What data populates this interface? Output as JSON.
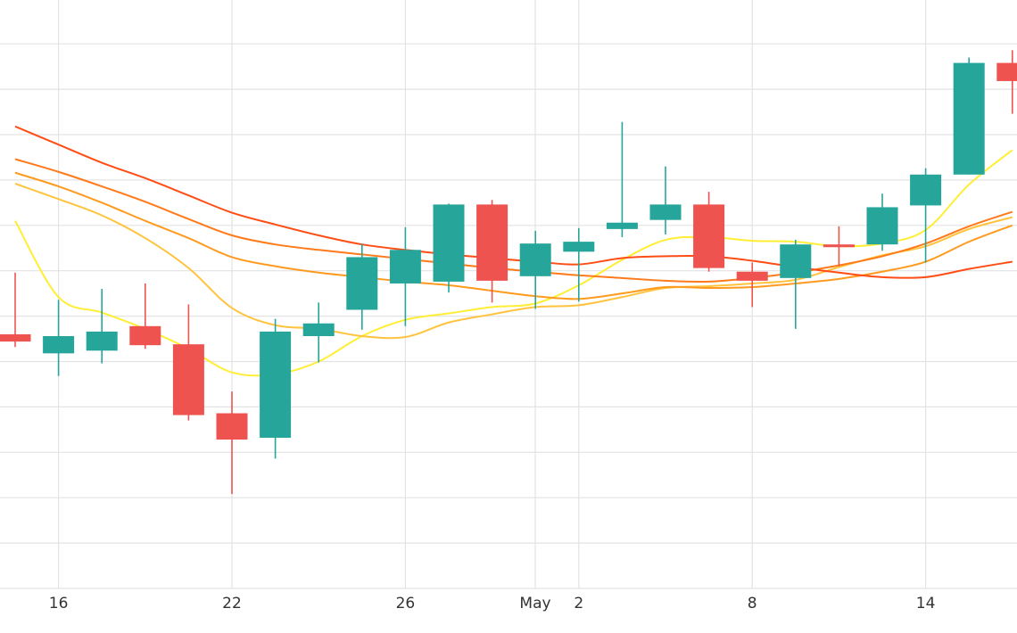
{
  "chart_data": {
    "type": "candlestick",
    "x_axis": {
      "ticks": [
        {
          "label": "16",
          "index": 1
        },
        {
          "label": "22",
          "index": 5
        },
        {
          "label": "26",
          "index": 9
        },
        {
          "label": "May",
          "index": 12
        },
        {
          "label": "2",
          "index": 13
        },
        {
          "label": "8",
          "index": 17
        },
        {
          "label": "14",
          "index": 21
        }
      ]
    },
    "y_axis": {
      "ylim": [
        0,
        13
      ],
      "gridlines": [
        1,
        2,
        3,
        4,
        5,
        6,
        7,
        8,
        9,
        10,
        11,
        12,
        13
      ],
      "tick_labels_visible": false
    },
    "grid": true,
    "colors": {
      "up": "#26a69a",
      "down": "#ef5350",
      "grid": "#e3e3e3"
    },
    "candles": [
      {
        "open": 5.6,
        "high": 6.96,
        "low": 5.32,
        "close": 5.44
      },
      {
        "open": 5.18,
        "high": 6.36,
        "low": 4.68,
        "close": 5.56
      },
      {
        "open": 5.24,
        "high": 6.6,
        "low": 4.96,
        "close": 5.66
      },
      {
        "open": 5.78,
        "high": 6.72,
        "low": 5.28,
        "close": 5.36
      },
      {
        "open": 5.38,
        "high": 6.26,
        "low": 3.7,
        "close": 3.82
      },
      {
        "open": 3.86,
        "high": 4.34,
        "low": 2.08,
        "close": 3.28
      },
      {
        "open": 3.32,
        "high": 5.94,
        "low": 2.86,
        "close": 5.66
      },
      {
        "open": 5.56,
        "high": 6.3,
        "low": 4.98,
        "close": 5.84
      },
      {
        "open": 6.14,
        "high": 7.6,
        "low": 5.7,
        "close": 7.3
      },
      {
        "open": 6.72,
        "high": 7.96,
        "low": 5.78,
        "close": 7.46
      },
      {
        "open": 6.76,
        "high": 8.48,
        "low": 6.52,
        "close": 8.46
      },
      {
        "open": 8.46,
        "high": 8.56,
        "low": 6.3,
        "close": 6.78
      },
      {
        "open": 6.88,
        "high": 7.88,
        "low": 6.16,
        "close": 7.6
      },
      {
        "open": 7.42,
        "high": 7.94,
        "low": 6.32,
        "close": 7.64
      },
      {
        "open": 7.92,
        "high": 10.28,
        "low": 7.74,
        "close": 8.06
      },
      {
        "open": 8.12,
        "high": 9.3,
        "low": 7.8,
        "close": 8.46
      },
      {
        "open": 8.46,
        "high": 8.74,
        "low": 6.98,
        "close": 7.06
      },
      {
        "open": 6.98,
        "high": 7.18,
        "low": 6.2,
        "close": 6.78
      },
      {
        "open": 6.84,
        "high": 7.68,
        "low": 5.72,
        "close": 7.58
      },
      {
        "open": 7.58,
        "high": 7.98,
        "low": 7.1,
        "close": 7.52
      },
      {
        "open": 7.58,
        "high": 8.7,
        "low": 7.44,
        "close": 8.4
      },
      {
        "open": 8.44,
        "high": 9.26,
        "low": 7.18,
        "close": 9.12
      },
      {
        "open": 9.12,
        "high": 11.7,
        "low": 9.12,
        "close": 11.58
      },
      {
        "open": 11.58,
        "high": 11.86,
        "low": 10.46,
        "close": 11.18
      }
    ],
    "series": [
      {
        "color": "#ffee33",
        "values": [
          8.1,
          6.42,
          6.08,
          5.72,
          5.28,
          4.76,
          4.72,
          5.0,
          5.56,
          5.92,
          6.06,
          6.2,
          6.28,
          6.68,
          7.24,
          7.68,
          7.74,
          7.66,
          7.64,
          7.54,
          7.6,
          7.9,
          8.9,
          9.66
        ]
      },
      {
        "color": "#ffc33d",
        "values": [
          8.92,
          8.58,
          8.22,
          7.72,
          7.06,
          6.18,
          5.8,
          5.72,
          5.56,
          5.54,
          5.86,
          6.04,
          6.2,
          6.24,
          6.42,
          6.62,
          6.66,
          6.72,
          6.8,
          7.08,
          7.34,
          7.54,
          7.92,
          8.18
        ]
      },
      {
        "color": "#ff9a1e",
        "values": [
          9.16,
          8.86,
          8.5,
          8.1,
          7.72,
          7.3,
          7.1,
          6.96,
          6.86,
          6.76,
          6.68,
          6.56,
          6.44,
          6.38,
          6.5,
          6.64,
          6.62,
          6.64,
          6.72,
          6.82,
          6.98,
          7.2,
          7.64,
          8.0
        ]
      },
      {
        "color": "#ff7a1a",
        "values": [
          9.46,
          9.18,
          8.86,
          8.52,
          8.14,
          7.78,
          7.58,
          7.46,
          7.36,
          7.26,
          7.16,
          7.06,
          6.98,
          6.9,
          6.84,
          6.78,
          6.76,
          6.84,
          6.96,
          7.12,
          7.32,
          7.6,
          7.98,
          8.3
        ]
      },
      {
        "color": "#ff4d14",
        "values": [
          10.18,
          9.78,
          9.38,
          9.04,
          8.66,
          8.28,
          8.02,
          7.78,
          7.58,
          7.46,
          7.36,
          7.28,
          7.2,
          7.14,
          7.28,
          7.32,
          7.32,
          7.22,
          7.08,
          6.96,
          6.86,
          6.86,
          7.04,
          7.2
        ]
      }
    ]
  }
}
